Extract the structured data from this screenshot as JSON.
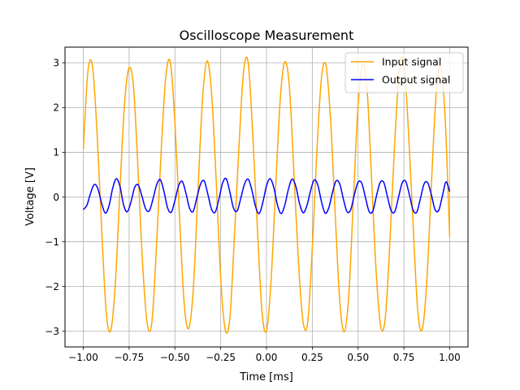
{
  "chart_data": {
    "type": "line",
    "title": "Oscilloscope Measurement",
    "xlabel": "Time [ms]",
    "ylabel": "Voltage [V]",
    "xlim": [
      -1.1,
      1.1
    ],
    "ylim": [
      -3.35,
      3.35
    ],
    "x_ticks": [
      -1.0,
      -0.75,
      -0.5,
      -0.25,
      0.0,
      0.25,
      0.5,
      0.75,
      1.0
    ],
    "x_tick_labels": [
      "−1.00",
      "−0.75",
      "−0.50",
      "−0.25",
      "0.00",
      "0.25",
      "0.50",
      "0.75",
      "1.00"
    ],
    "y_ticks": [
      -3,
      -2,
      -1,
      0,
      1,
      2,
      3
    ],
    "y_tick_labels": [
      "−3",
      "−2",
      "−1",
      "0",
      "1",
      "2",
      "3"
    ],
    "grid": true,
    "legend_position": "top-right",
    "series": [
      {
        "name": "Input signal",
        "color": "#FFA500",
        "x": [
          -1.0,
          -0.975,
          -0.95,
          -0.925,
          -0.9,
          -0.875,
          -0.85,
          -0.825,
          -0.8,
          -0.775,
          -0.75,
          -0.725,
          -0.7,
          -0.675,
          -0.65,
          -0.625,
          -0.6,
          -0.575,
          -0.55,
          -0.525,
          -0.5,
          -0.475,
          -0.45,
          -0.425,
          -0.4,
          -0.375,
          -0.35,
          -0.325,
          -0.3,
          -0.275,
          -0.25,
          -0.225,
          -0.2,
          -0.175,
          -0.15,
          -0.125,
          -0.1,
          -0.075,
          -0.05,
          -0.025,
          0.0,
          0.025,
          0.05,
          0.075,
          0.1,
          0.125,
          0.15,
          0.175,
          0.2,
          0.225,
          0.25,
          0.275,
          0.3,
          0.325,
          0.35,
          0.375,
          0.4,
          0.425,
          0.45,
          0.475,
          0.5,
          0.525,
          0.55,
          0.575,
          0.6,
          0.625,
          0.65,
          0.675,
          0.7,
          0.725,
          0.75,
          0.775,
          0.8,
          0.825,
          0.85,
          0.875,
          0.9,
          0.925,
          0.95,
          0.975,
          1.0
        ],
        "y": [
          1.07,
          2.8,
          2.92,
          1.44,
          -0.71,
          -2.57,
          -2.98,
          -1.92,
          0.17,
          2.08,
          2.89,
          2.41,
          0.49,
          -1.59,
          -2.86,
          -2.77,
          -1.05,
          1.02,
          2.67,
          3.02,
          1.66,
          -0.42,
          -2.35,
          -2.94,
          -2.08,
          0.05,
          2.13,
          3.04,
          2.33,
          0.4,
          -1.82,
          -2.97,
          -2.7,
          -0.87,
          1.15,
          2.81,
          3.0,
          1.39,
          -0.68,
          -2.54,
          -2.99,
          -1.86,
          0.21,
          2.18,
          3.02,
          2.46,
          0.51,
          -1.5,
          -2.8,
          -2.79,
          -1.14,
          1.01,
          2.66,
          2.94,
          1.71,
          -0.37,
          -2.33,
          -3.01,
          -2.14,
          0.01,
          2.05,
          2.96,
          2.35,
          0.28,
          -1.76,
          -2.93,
          -2.64,
          -0.89,
          1.22,
          2.83,
          3.03,
          1.47,
          -0.59,
          -2.51,
          -2.96,
          -1.89,
          0.26,
          2.23,
          2.93,
          1.78,
          -0.89
        ]
      },
      {
        "name": "Output signal",
        "color": "#0000FF",
        "x": [
          -1.0,
          -0.98,
          -0.96,
          -0.94,
          -0.92,
          -0.9,
          -0.88,
          -0.86,
          -0.84,
          -0.82,
          -0.8,
          -0.78,
          -0.76,
          -0.74,
          -0.72,
          -0.7,
          -0.68,
          -0.66,
          -0.64,
          -0.62,
          -0.6,
          -0.58,
          -0.56,
          -0.54,
          -0.52,
          -0.5,
          -0.48,
          -0.46,
          -0.44,
          -0.42,
          -0.4,
          -0.38,
          -0.36,
          -0.34,
          -0.32,
          -0.3,
          -0.28,
          -0.26,
          -0.24,
          -0.22,
          -0.2,
          -0.18,
          -0.16,
          -0.14,
          -0.12,
          -0.1,
          -0.08,
          -0.06,
          -0.04,
          -0.02,
          0.0,
          0.02,
          0.04,
          0.06,
          0.08,
          0.1,
          0.12,
          0.14,
          0.16,
          0.18,
          0.2,
          0.22,
          0.24,
          0.26,
          0.28,
          0.3,
          0.32,
          0.34,
          0.36,
          0.38,
          0.4,
          0.42,
          0.44,
          0.46,
          0.48,
          0.5,
          0.52,
          0.54,
          0.56,
          0.58,
          0.6,
          0.62,
          0.64,
          0.66,
          0.68,
          0.7,
          0.72,
          0.74,
          0.76,
          0.78,
          0.8,
          0.82,
          0.84,
          0.86,
          0.88,
          0.9,
          0.92,
          0.94,
          0.96,
          0.98,
          1.0
        ],
        "y": [
          -0.28,
          -0.18,
          0.09,
          0.28,
          0.18,
          -0.14,
          -0.36,
          -0.2,
          0.19,
          0.41,
          0.24,
          -0.18,
          -0.33,
          -0.11,
          0.21,
          0.27,
          0.02,
          -0.26,
          -0.31,
          -0.05,
          0.27,
          0.39,
          0.13,
          -0.24,
          -0.34,
          -0.08,
          0.25,
          0.35,
          0.09,
          -0.25,
          -0.32,
          -0.01,
          0.29,
          0.36,
          0.06,
          -0.27,
          -0.34,
          -0.05,
          0.31,
          0.41,
          0.11,
          -0.25,
          -0.31,
          -0.02,
          0.29,
          0.4,
          0.16,
          -0.21,
          -0.37,
          -0.12,
          0.25,
          0.41,
          0.21,
          -0.18,
          -0.37,
          -0.18,
          0.18,
          0.4,
          0.24,
          -0.14,
          -0.35,
          -0.2,
          0.13,
          0.38,
          0.27,
          -0.1,
          -0.36,
          -0.24,
          0.1,
          0.36,
          0.29,
          -0.05,
          -0.33,
          -0.28,
          0.06,
          0.33,
          0.31,
          -0.01,
          -0.32,
          -0.32,
          0.02,
          0.32,
          0.33,
          0.01,
          -0.3,
          -0.33,
          -0.02,
          0.31,
          0.35,
          0.05,
          -0.29,
          -0.34,
          -0.04,
          0.29,
          0.32,
          0.05,
          -0.28,
          -0.3,
          0.02,
          0.34,
          0.12
        ]
      }
    ]
  }
}
